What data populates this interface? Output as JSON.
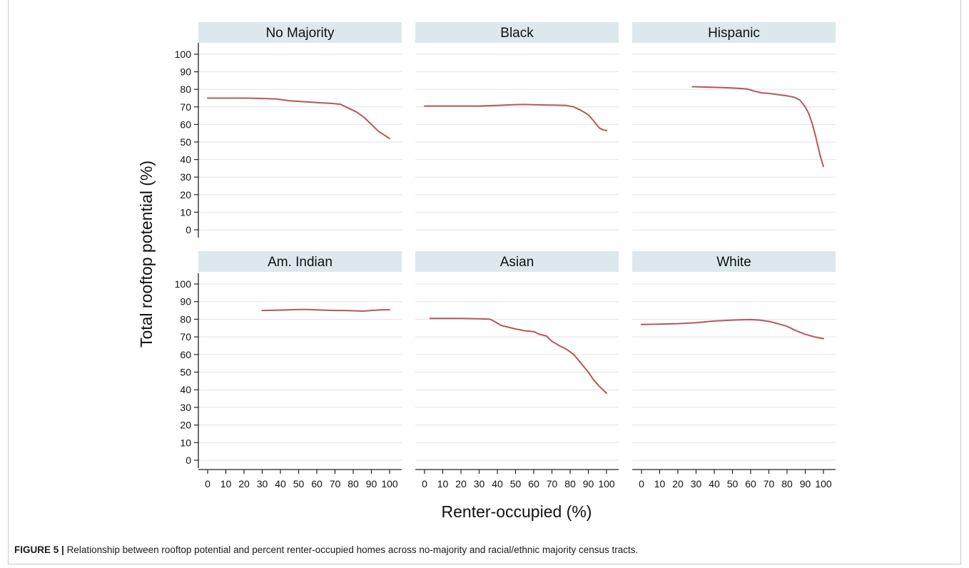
{
  "figure": {
    "caption_label": "FIGURE 5 |",
    "caption_text": "Relationship between rooftop potential and percent renter-occupied homes across no-majority and racial/ethnic majority census tracts."
  },
  "colors": {
    "line": "#b5585a",
    "strip": "#dde8ec",
    "grid": "#e3e3e3",
    "axis": "#222222"
  },
  "chart_data": {
    "type": "line",
    "xlabel": "Renter-occupied (%)",
    "ylabel": "Total rooftop potential (%)",
    "xlim": [
      0,
      100
    ],
    "ylim": [
      0,
      100
    ],
    "x_ticks": [
      0,
      10,
      20,
      30,
      40,
      50,
      60,
      70,
      80,
      90,
      100
    ],
    "y_ticks": [
      0,
      10,
      20,
      30,
      40,
      50,
      60,
      70,
      80,
      90,
      100
    ],
    "grid": "horizontal",
    "panels": [
      {
        "title": "No Majority",
        "x": [
          0,
          10,
          20,
          30,
          38,
          45,
          52,
          60,
          68,
          73,
          78,
          82,
          86,
          90,
          94,
          97,
          100
        ],
        "y": [
          75,
          75,
          75,
          74.8,
          74.5,
          73.5,
          73,
          72.5,
          72,
          71.5,
          69,
          67,
          64,
          60,
          56,
          54,
          52
        ]
      },
      {
        "title": "Black",
        "x": [
          0,
          10,
          20,
          30,
          40,
          50,
          55,
          60,
          70,
          78,
          82,
          86,
          90,
          93,
          96,
          98,
          100
        ],
        "y": [
          70.5,
          70.5,
          70.5,
          70.5,
          70.8,
          71.3,
          71.4,
          71.2,
          71,
          70.8,
          70,
          68,
          65.5,
          62,
          58,
          57,
          56.5
        ]
      },
      {
        "title": "Hispanic",
        "x": [
          28,
          35,
          45,
          55,
          58,
          62,
          66,
          70,
          75,
          80,
          84,
          87,
          90,
          92,
          94,
          96,
          98,
          100
        ],
        "y": [
          81.5,
          81.3,
          81,
          80.5,
          80.2,
          79,
          78,
          77.7,
          77,
          76.3,
          75.5,
          74,
          70,
          66,
          60,
          52,
          43,
          36
        ]
      },
      {
        "title": "Am. Indian",
        "x": [
          30,
          40,
          50,
          55,
          60,
          65,
          70,
          75,
          80,
          85,
          90,
          95,
          100
        ],
        "y": [
          85,
          85.2,
          85.5,
          85.5,
          85.3,
          85.1,
          85,
          85,
          84.8,
          84.6,
          85,
          85.3,
          85.4
        ]
      },
      {
        "title": "Asian",
        "x": [
          3,
          10,
          20,
          30,
          36,
          38,
          42,
          46,
          50,
          55,
          60,
          63,
          67,
          70,
          74,
          78,
          82,
          86,
          90,
          93,
          96,
          98,
          100
        ],
        "y": [
          80.5,
          80.5,
          80.5,
          80.3,
          80,
          79,
          76.5,
          75.5,
          74.5,
          73.5,
          73,
          71.5,
          70.5,
          67.5,
          65,
          63,
          60,
          55,
          50,
          45.5,
          42,
          40,
          38
        ]
      },
      {
        "title": "White",
        "x": [
          0,
          10,
          20,
          30,
          40,
          50,
          55,
          60,
          65,
          70,
          75,
          80,
          85,
          90,
          95,
          100
        ],
        "y": [
          77,
          77.2,
          77.5,
          78,
          79,
          79.5,
          79.7,
          79.8,
          79.5,
          78.8,
          77.5,
          76,
          73.5,
          71.5,
          70,
          69
        ]
      }
    ]
  }
}
